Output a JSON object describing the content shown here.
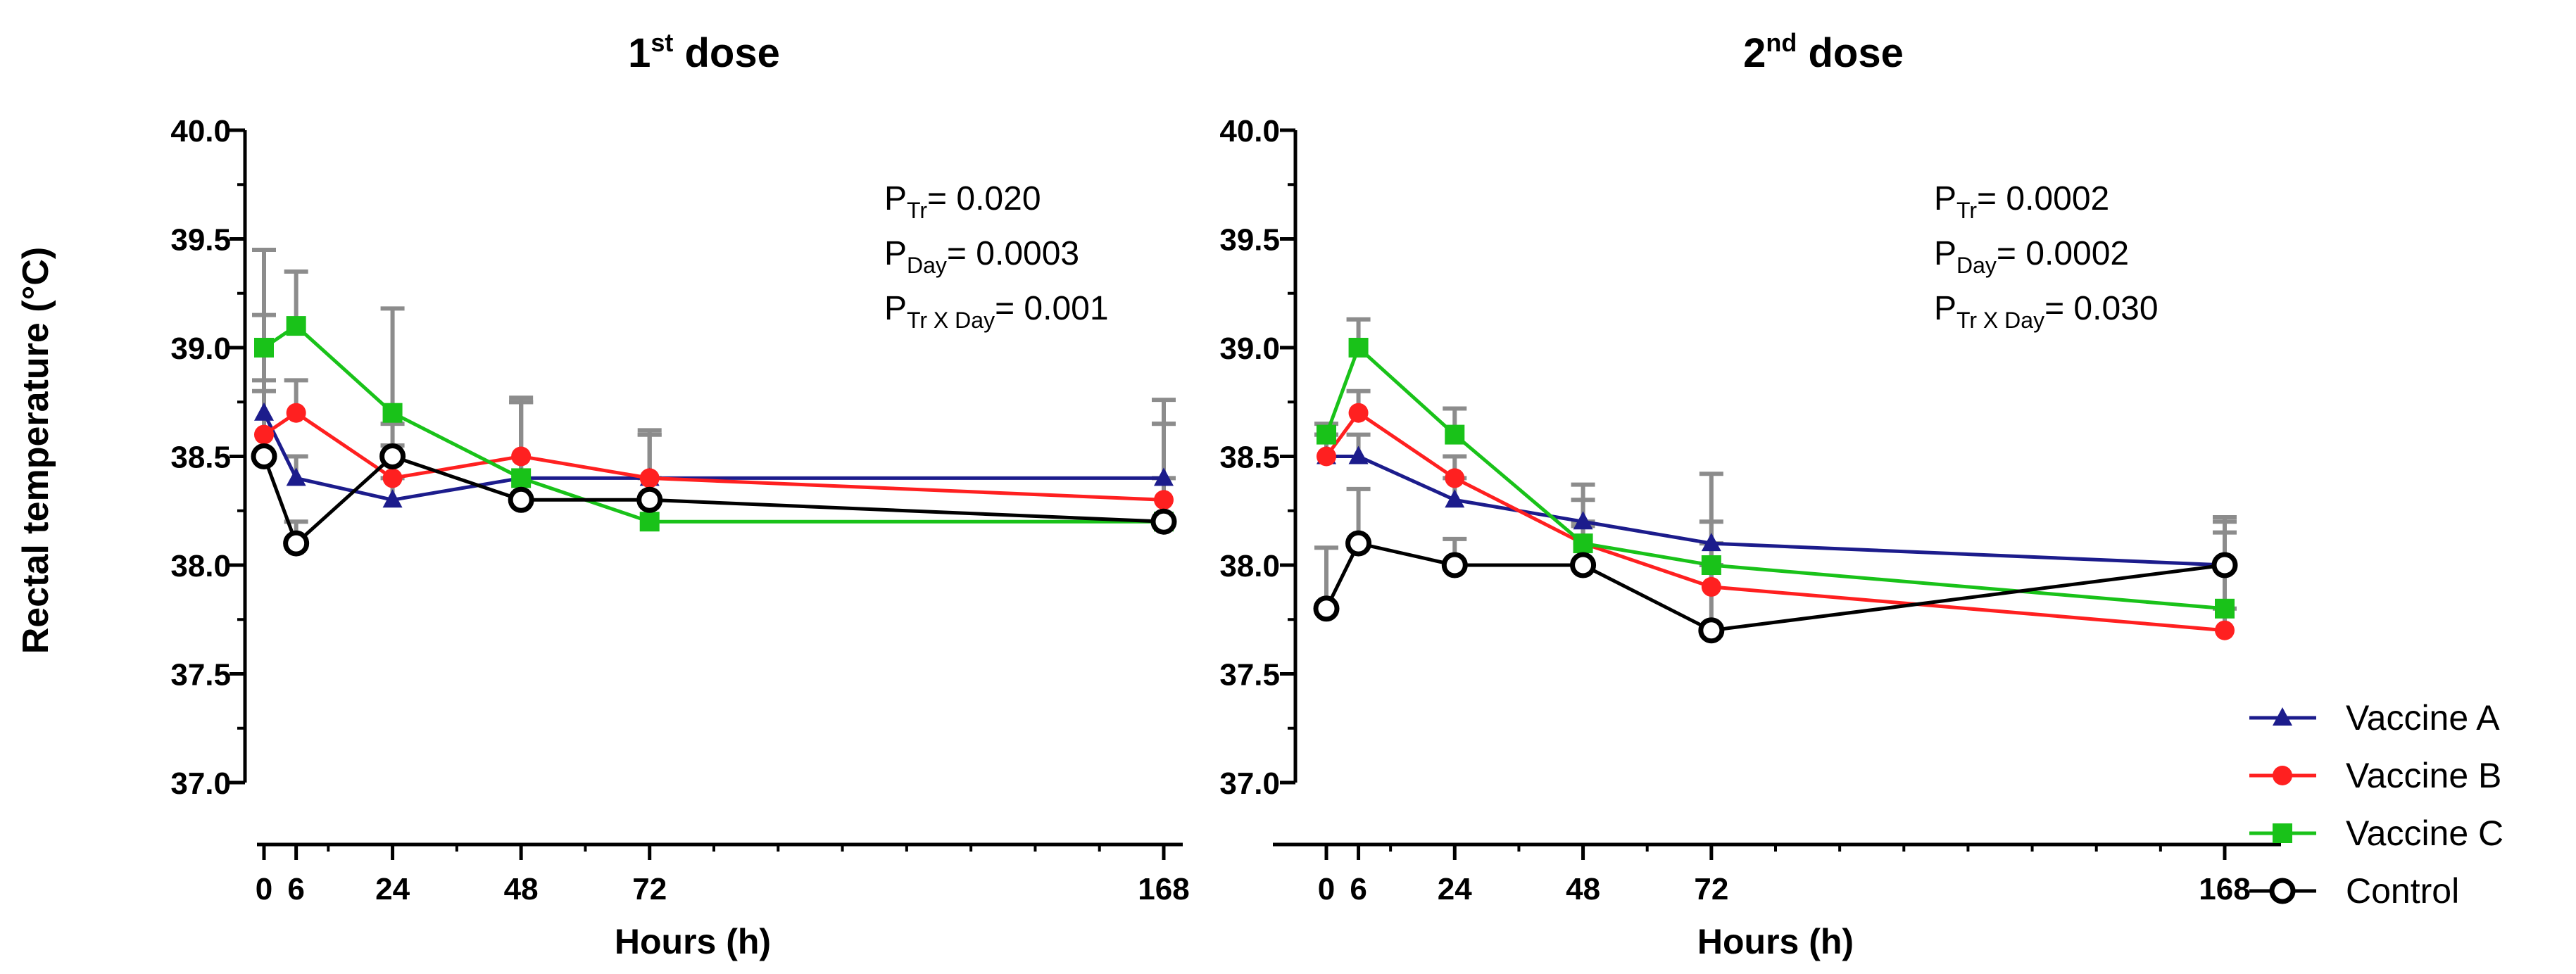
{
  "figure": {
    "ylabel": "Rectal temperature (°C)"
  },
  "legend": [
    {
      "label": "Vaccine A",
      "color": "#1c1c8c",
      "marker": "triangle"
    },
    {
      "label": "Vaccine B",
      "color": "#ff2020",
      "marker": "circle"
    },
    {
      "label": "Vaccine C",
      "color": "#19c219",
      "marker": "square"
    },
    {
      "label": "Control",
      "color": "#000000",
      "marker": "open-circle"
    }
  ],
  "chart_data": [
    {
      "type": "line",
      "title": "1st dose",
      "title_main": "1",
      "title_sup": "st",
      "title_rest": " dose",
      "xlabel": "Hours (h)",
      "ylabel": "Rectal temperature (°C)",
      "x": [
        0,
        6,
        24,
        48,
        72,
        168
      ],
      "x_ticks": [
        "0",
        "6",
        "24",
        "48",
        "72",
        "168"
      ],
      "ylim": [
        37.0,
        40.0
      ],
      "y_ticks": [
        "37.0",
        "37.5",
        "38.0",
        "38.5",
        "39.0",
        "39.5",
        "40.0"
      ],
      "series": [
        {
          "name": "Vaccine A",
          "values": [
            38.7,
            38.4,
            38.3,
            38.4,
            38.4,
            38.4
          ],
          "err": [
            0.15,
            0.1,
            0.1,
            0.35,
            0.2,
            0.25
          ]
        },
        {
          "name": "Vaccine B",
          "values": [
            38.6,
            38.7,
            38.4,
            38.5,
            38.4,
            38.3
          ],
          "err": [
            0.2,
            0.15,
            0.15,
            0.27,
            0.2,
            0.35
          ]
        },
        {
          "name": "Vaccine C",
          "values": [
            39.0,
            39.1,
            38.7,
            38.4,
            38.2,
            38.2
          ],
          "err": [
            0.45,
            0.25,
            0.48,
            0.35,
            0.2,
            0.2
          ]
        },
        {
          "name": "Control",
          "values": [
            38.5,
            38.1,
            38.5,
            38.3,
            38.3,
            38.2
          ],
          "err": [
            0.65,
            0.1,
            0.15,
            0.45,
            0.32,
            0.56
          ]
        }
      ],
      "stats": [
        {
          "sub": "Tr",
          "value": "= 0.020"
        },
        {
          "sub": "Day",
          "value": "= 0.0003"
        },
        {
          "sub": "Tr X Day",
          "value": "= 0.001"
        }
      ]
    },
    {
      "type": "line",
      "title": "2nd dose",
      "title_main": "2",
      "title_sup": "nd",
      "title_rest": " dose",
      "xlabel": "Hours (h)",
      "ylabel": "",
      "x": [
        0,
        6,
        24,
        48,
        72,
        168
      ],
      "x_ticks": [
        "0",
        "6",
        "24",
        "48",
        "72",
        "168"
      ],
      "ylim": [
        37.0,
        40.0
      ],
      "y_ticks": [
        "37.0",
        "37.5",
        "38.0",
        "38.5",
        "39.0",
        "39.5",
        "40.0"
      ],
      "series": [
        {
          "name": "Vaccine A",
          "values": [
            38.5,
            38.5,
            38.3,
            38.2,
            38.1,
            38.0
          ],
          "err": [
            0.1,
            0.1,
            0.1,
            0.1,
            0.1,
            0.15
          ]
        },
        {
          "name": "Vaccine B",
          "values": [
            38.5,
            38.7,
            38.4,
            38.1,
            37.9,
            37.7
          ],
          "err": [
            0.1,
            0.1,
            0.1,
            0.1,
            0.1,
            0.1
          ]
        },
        {
          "name": "Vaccine C",
          "values": [
            38.6,
            39.0,
            38.6,
            38.1,
            38.0,
            37.8
          ],
          "err": [
            0.05,
            0.13,
            0.12,
            0.27,
            0.42,
            0.4
          ]
        },
        {
          "name": "Control",
          "values": [
            37.8,
            38.1,
            38.0,
            38.0,
            37.7,
            38.0
          ],
          "err": [
            0.28,
            0.25,
            0.12,
            0.18,
            0.4,
            0.22
          ]
        }
      ],
      "stats": [
        {
          "sub": "Tr",
          "value": "= 0.0002"
        },
        {
          "sub": "Day",
          "value": "= 0.0002"
        },
        {
          "sub": "Tr X Day",
          "value": "= 0.030"
        }
      ]
    }
  ]
}
